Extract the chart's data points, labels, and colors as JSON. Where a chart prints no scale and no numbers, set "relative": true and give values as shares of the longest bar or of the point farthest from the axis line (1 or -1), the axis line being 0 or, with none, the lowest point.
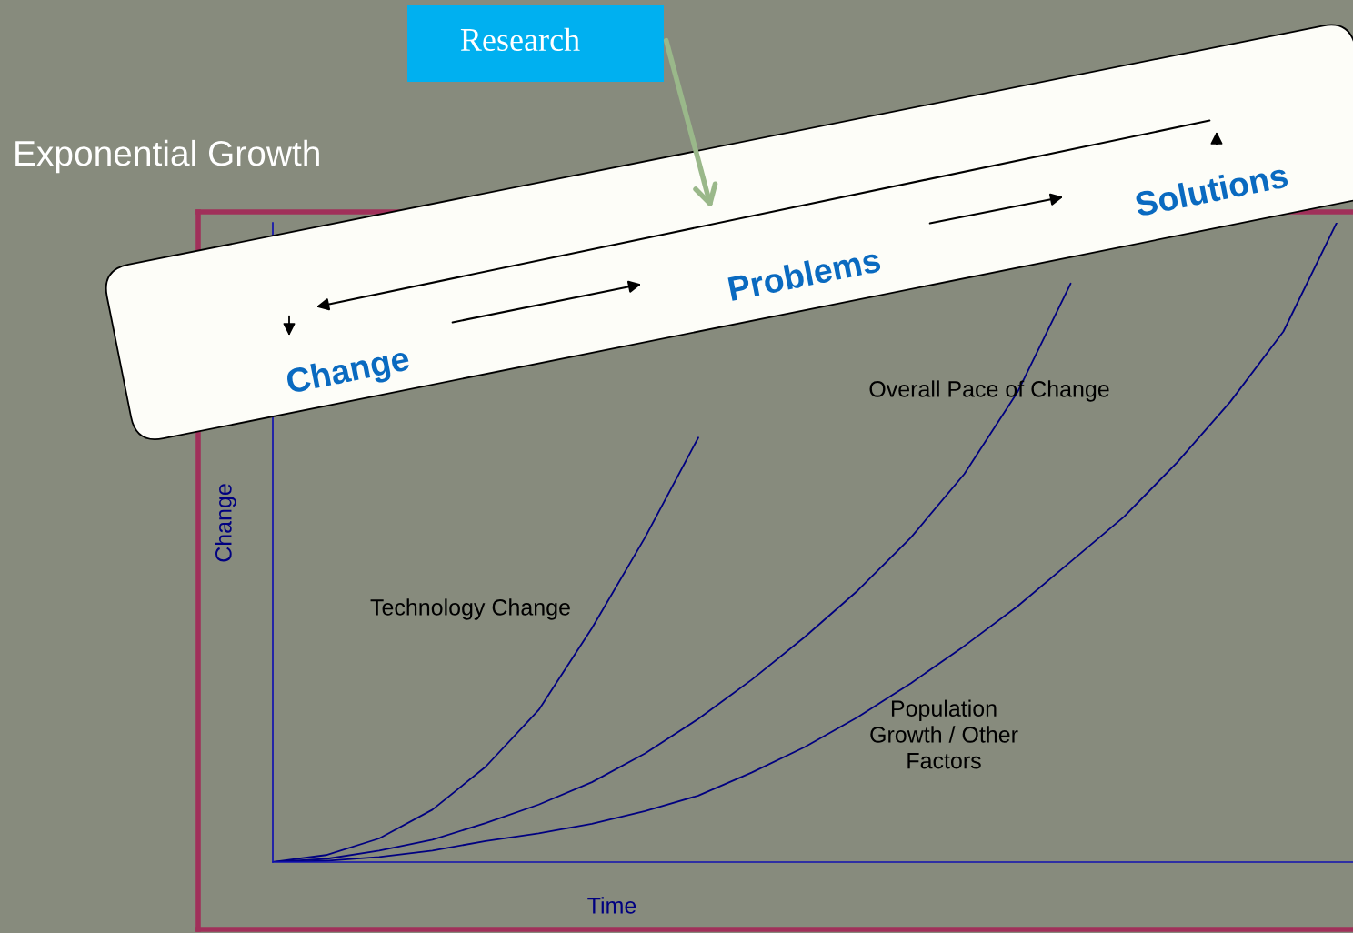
{
  "chart_data": {
    "type": "line",
    "relative": true,
    "title": "Exponential Growth",
    "xlabel": "Time",
    "ylabel": "Change",
    "categories": [
      null,
      null,
      null,
      null,
      null,
      null,
      null,
      null,
      null,
      null,
      null,
      null,
      null,
      null,
      null,
      null,
      null,
      null,
      null,
      null,
      null
    ],
    "series": [
      {
        "name": "Technology Change",
        "color": "#000080",
        "values": [
          0,
          0.011,
          0.037,
          0.082,
          0.149,
          0.238,
          0.366,
          0.508,
          0.664,
          null,
          null,
          null,
          null,
          null,
          null,
          null,
          null,
          null,
          null,
          null,
          null
        ]
      },
      {
        "name": "Overall Pace of Change",
        "color": "#000080",
        "values": [
          0,
          0.005,
          0.018,
          0.035,
          0.061,
          0.09,
          0.125,
          0.17,
          0.224,
          0.285,
          0.352,
          0.425,
          0.508,
          0.607,
          0.735,
          0.905,
          null,
          null,
          null,
          null,
          null
        ]
      },
      {
        "name": "Population\nGrowth / Other\nFactors",
        "color": "#000080",
        "values": [
          0,
          0.002,
          0.008,
          0.018,
          0.033,
          0.045,
          0.06,
          0.08,
          0.104,
          0.14,
          0.18,
          0.227,
          0.28,
          0.338,
          0.4,
          0.47,
          0.54,
          0.625,
          0.72,
          0.83,
          1.0
        ]
      }
    ],
    "annotations": [
      "Change",
      "Problems",
      "Solutions",
      "Research"
    ]
  }
}
